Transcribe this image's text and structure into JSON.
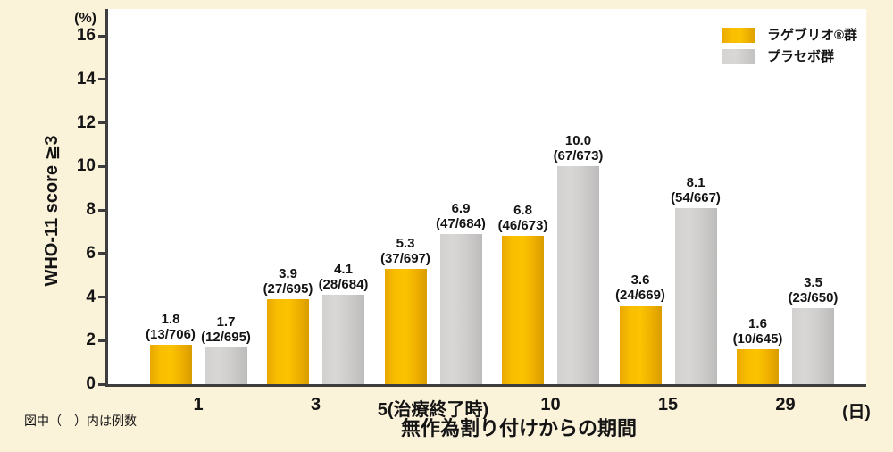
{
  "colors": {
    "page_bg": "#FBF2DA",
    "plot_bg": "#FFFFFF",
    "axis": "#3D3D3D",
    "molnupiravir_yellow": "#F5B800",
    "placebo_gray": "#CCCCCC",
    "text": "#141414"
  },
  "y_axis": {
    "unit_label": "(%)",
    "title": "WHO-11 score ≧3",
    "ticks": [
      16,
      14,
      12,
      10,
      8,
      6,
      4,
      2,
      0
    ],
    "max": 16
  },
  "x_axis": {
    "title": "無作為割り付けからの期間",
    "unit_label": "(日)",
    "categories": [
      "1",
      "3",
      "5(治療終了時)",
      "10",
      "15",
      "29"
    ]
  },
  "legend": {
    "items": [
      {
        "label": "ラゲブリオ®群",
        "color": "#F5B800"
      },
      {
        "label": "プラセボ群",
        "color": "#CCCCCC"
      }
    ]
  },
  "footnote": "図中（　）内は例数",
  "chart_data": {
    "type": "bar",
    "categories": [
      "1",
      "3",
      "5(治療終了時)",
      "10",
      "15",
      "29"
    ],
    "series": [
      {
        "name": "ラゲブリオ®群",
        "color": "#F5B800",
        "values": [
          1.8,
          3.9,
          5.3,
          6.8,
          3.6,
          1.6
        ],
        "counts": [
          "13/706",
          "27/695",
          "37/697",
          "46/673",
          "24/669",
          "10/645"
        ]
      },
      {
        "name": "プラセボ群",
        "color": "#CCCCCC",
        "values": [
          1.7,
          4.1,
          6.9,
          10.0,
          8.1,
          3.5
        ],
        "counts": [
          "12/695",
          "28/684",
          "47/684",
          "67/673",
          "54/667",
          "23/650"
        ]
      }
    ],
    "ylim": [
      0,
      16
    ],
    "ytick_step": 2,
    "title": "",
    "xlabel": "無作為割り付けからの期間",
    "ylabel": "WHO-11 score ≧3",
    "x_unit": "(日)",
    "y_unit": "(%)",
    "value_label_format": "value above (n/N)",
    "legend_position": "top-right",
    "grid": false
  }
}
